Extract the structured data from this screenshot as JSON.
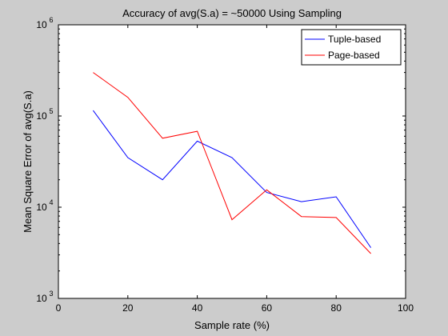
{
  "window": {
    "background": "#cccccc",
    "plot_background": "#ffffff"
  },
  "chart_data": {
    "type": "line",
    "title": "Accuracy of avg(S.a) = ~50000 Using Sampling",
    "xlabel": "Sample rate (%)",
    "ylabel": "Mean Square Error of avg(S.a)",
    "xlim": [
      0,
      100
    ],
    "ylim": [
      1000,
      1000000
    ],
    "yscale": "log",
    "xticks": [
      0,
      20,
      40,
      60,
      80,
      100
    ],
    "xtick_labels": [
      "0",
      "20",
      "40",
      "60",
      "80",
      "100"
    ],
    "yticks": [
      1000,
      10000,
      100000,
      1000000
    ],
    "ytick_labels": [
      {
        "base": "10",
        "exp": "3"
      },
      {
        "base": "10",
        "exp": "4"
      },
      {
        "base": "10",
        "exp": "5"
      },
      {
        "base": "10",
        "exp": "6"
      }
    ],
    "legend_position": "top-right",
    "x": [
      10,
      20,
      30,
      40,
      50,
      60,
      70,
      80,
      90
    ],
    "series": [
      {
        "name": "Tuple-based",
        "color": "#0000ff",
        "values": [
          115000,
          35000,
          20000,
          53000,
          35000,
          14500,
          11500,
          13000,
          3600
        ]
      },
      {
        "name": "Page-based",
        "color": "#ff0000",
        "values": [
          300000,
          160000,
          57000,
          68000,
          7300,
          15500,
          7900,
          7700,
          3100
        ]
      }
    ]
  }
}
